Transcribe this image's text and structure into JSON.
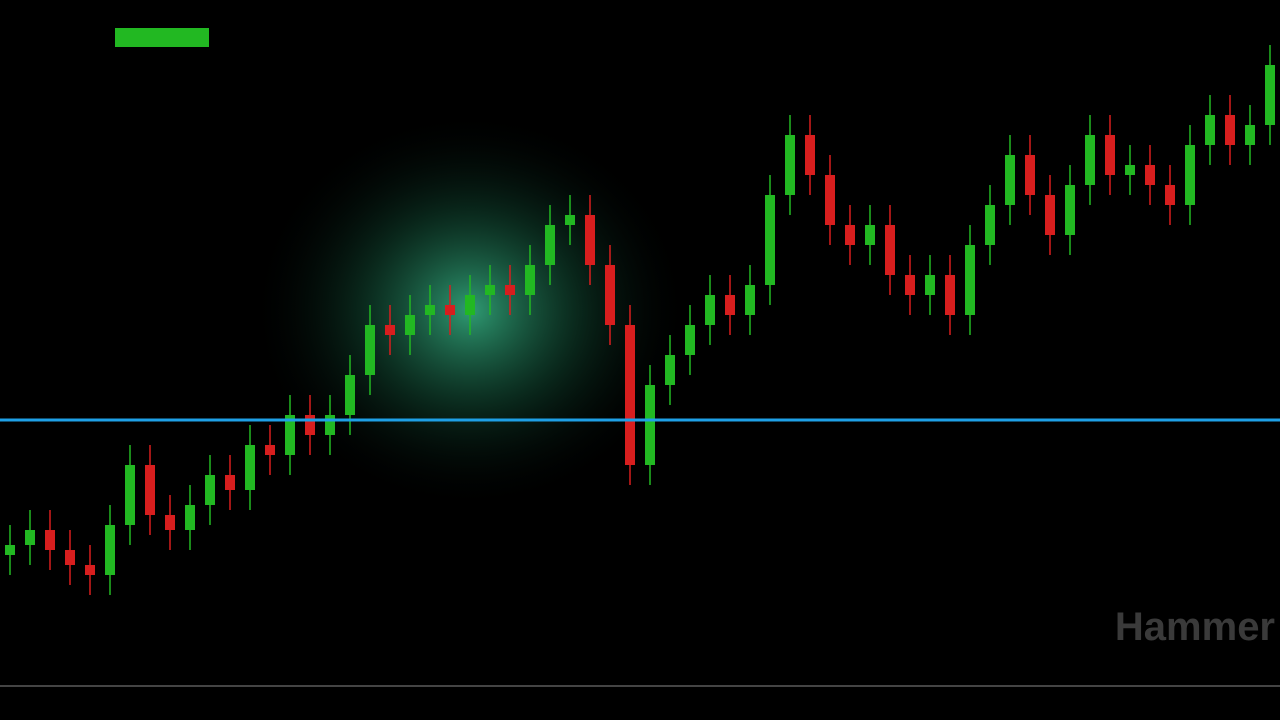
{
  "chart_data": {
    "type": "candlestick",
    "watermark": "Hammer",
    "ylim": [
      0,
      68.5
    ],
    "up_color": "#22b822",
    "down_color": "#d81e1e",
    "level": {
      "value": 26.5,
      "color": "#1ea0e6"
    },
    "open": [
      13,
      14,
      15.5,
      13.5,
      12,
      11,
      16,
      22,
      17,
      15.5,
      18,
      21,
      19.5,
      24,
      23,
      27,
      25,
      27,
      31,
      36,
      35,
      37,
      38,
      37,
      39,
      40,
      39,
      42,
      46,
      47,
      42,
      36,
      22,
      30,
      33,
      36,
      39,
      37,
      40,
      49,
      55,
      51,
      46,
      44,
      46,
      41,
      39,
      41,
      37,
      44,
      48,
      53,
      49,
      45,
      50,
      55,
      51,
      52,
      50,
      48,
      54,
      57,
      54,
      56
    ],
    "high": [
      16,
      17.5,
      17.5,
      15.5,
      14,
      18,
      24,
      24,
      19,
      20,
      23,
      23,
      26,
      26,
      29,
      29,
      29,
      33,
      38,
      38,
      39,
      40,
      40,
      41,
      42,
      42,
      44,
      48,
      49,
      49,
      44,
      38,
      32,
      35,
      38,
      41,
      41,
      42,
      51,
      57,
      57,
      53,
      48,
      48,
      48,
      43,
      43,
      43,
      46,
      50,
      55,
      55,
      51,
      52,
      57,
      57,
      54,
      54,
      52,
      56,
      59,
      59,
      58,
      64
    ],
    "low": [
      11,
      12,
      11.5,
      10,
      9,
      9,
      14,
      15,
      13.5,
      13.5,
      16,
      17.5,
      17.5,
      21,
      21,
      23,
      23,
      25,
      29,
      33,
      33,
      35,
      35,
      35,
      37,
      37,
      37,
      40,
      44,
      40,
      34,
      20,
      20,
      28,
      31,
      34,
      35,
      35,
      38,
      47,
      49,
      44,
      42,
      42,
      39,
      37,
      37,
      35,
      35,
      42,
      46,
      47,
      43,
      43,
      48,
      49,
      49,
      48,
      46,
      46,
      52,
      52,
      52,
      54
    ],
    "close": [
      14,
      15.5,
      13.5,
      12,
      11,
      16,
      22,
      17,
      15.5,
      18,
      21,
      19.5,
      24,
      23,
      27,
      25,
      27,
      31,
      36,
      35,
      37,
      38,
      37,
      39,
      40,
      39,
      42,
      46,
      47,
      42,
      36,
      22,
      30,
      33,
      36,
      39,
      37,
      40,
      49,
      55,
      51,
      46,
      44,
      46,
      41,
      39,
      41,
      37,
      44,
      48,
      53,
      49,
      45,
      50,
      55,
      51,
      52,
      50,
      48,
      54,
      57,
      54,
      56,
      62
    ]
  }
}
